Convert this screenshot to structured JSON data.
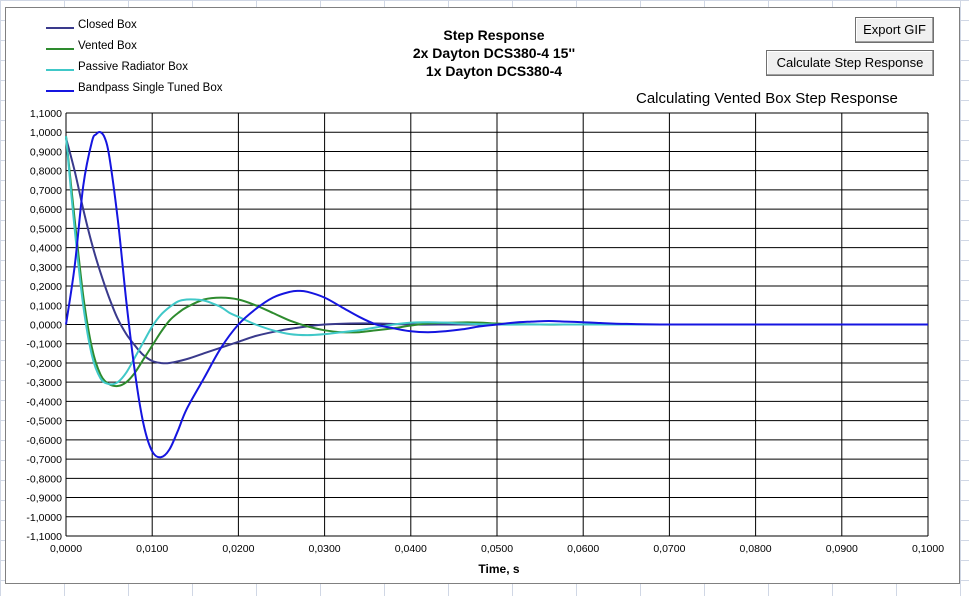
{
  "buttons": {
    "export_gif": "Export GIF",
    "calculate": "Calculate Step Response"
  },
  "status": "Calculating Vented Box Step Response",
  "chart_data": {
    "type": "line",
    "title_lines": [
      "Step Response",
      "2x Dayton  DCS380-4 15''",
      "1x Dayton DCS380-4"
    ],
    "xlabel": "Time, s",
    "ylabel": "",
    "xlim": [
      0,
      0.1
    ],
    "ylim": [
      -1.1,
      1.1
    ],
    "x_ticks": [
      "0,0000",
      "0,0100",
      "0,0200",
      "0,0300",
      "0,0400",
      "0,0500",
      "0,0600",
      "0,0700",
      "0,0800",
      "0,0900",
      "0,1000"
    ],
    "y_ticks": [
      "1,1000",
      "1,0000",
      "0,9000",
      "0,8000",
      "0,7000",
      "0,6000",
      "0,5000",
      "0,4000",
      "0,3000",
      "0,2000",
      "0,1000",
      "0,0000",
      "-0,1000",
      "-0,2000",
      "-0,3000",
      "-0,4000",
      "-0,5000",
      "-0,6000",
      "-0,7000",
      "-0,8000",
      "-0,9000",
      "-1,0000",
      "-1,1000"
    ],
    "grid": true,
    "legend_position": "top-left",
    "series": [
      {
        "name": "Closed Box",
        "color": "#3a3a8c",
        "x": [
          0,
          0.001,
          0.002,
          0.003,
          0.004,
          0.005,
          0.006,
          0.007,
          0.008,
          0.009,
          0.01,
          0.011,
          0.012,
          0.014,
          0.016,
          0.018,
          0.02,
          0.022,
          0.025,
          0.028,
          0.03,
          0.033,
          0.036,
          0.04,
          0.045,
          0.05,
          0.06,
          0.07,
          0.08,
          0.09,
          0.1
        ],
        "y": [
          0.97,
          0.8,
          0.6,
          0.42,
          0.27,
          0.14,
          0.03,
          -0.05,
          -0.11,
          -0.16,
          -0.19,
          -0.2,
          -0.2,
          -0.18,
          -0.15,
          -0.12,
          -0.09,
          -0.06,
          -0.03,
          -0.01,
          0,
          0.005,
          0.005,
          0,
          0,
          0,
          0,
          0,
          0,
          0,
          0
        ]
      },
      {
        "name": "Vented Box",
        "color": "#2e8b2e",
        "x": [
          0,
          0.001,
          0.002,
          0.003,
          0.004,
          0.005,
          0.006,
          0.007,
          0.008,
          0.009,
          0.01,
          0.011,
          0.012,
          0.013,
          0.014,
          0.016,
          0.018,
          0.02,
          0.022,
          0.024,
          0.026,
          0.028,
          0.03,
          0.032,
          0.034,
          0.036,
          0.038,
          0.04,
          0.042,
          0.045,
          0.048,
          0.05,
          0.055,
          0.06,
          0.07,
          0.08,
          0.09,
          0.1
        ],
        "y": [
          0.98,
          0.55,
          0.15,
          -0.12,
          -0.26,
          -0.31,
          -0.32,
          -0.3,
          -0.25,
          -0.18,
          -0.11,
          -0.04,
          0.02,
          0.06,
          0.09,
          0.13,
          0.14,
          0.13,
          0.1,
          0.06,
          0.02,
          -0.01,
          -0.03,
          -0.04,
          -0.04,
          -0.03,
          -0.02,
          -0.005,
          0.005,
          0.01,
          0.01,
          0.005,
          0,
          0,
          0,
          0,
          0,
          0
        ]
      },
      {
        "name": "Passive Radiator Box",
        "color": "#40c8c8",
        "x": [
          0,
          0.001,
          0.002,
          0.003,
          0.004,
          0.005,
          0.006,
          0.007,
          0.008,
          0.009,
          0.01,
          0.011,
          0.012,
          0.013,
          0.014,
          0.015,
          0.016,
          0.017,
          0.018,
          0.019,
          0.02,
          0.022,
          0.024,
          0.026,
          0.028,
          0.03,
          0.032,
          0.034,
          0.036,
          0.038,
          0.04,
          0.042,
          0.044,
          0.046,
          0.05,
          0.055,
          0.06,
          0.07,
          0.08,
          0.09,
          0.1
        ],
        "y": [
          0.98,
          0.5,
          0.1,
          -0.16,
          -0.28,
          -0.31,
          -0.3,
          -0.25,
          -0.17,
          -0.09,
          -0.01,
          0.05,
          0.09,
          0.12,
          0.13,
          0.13,
          0.125,
          0.11,
          0.09,
          0.06,
          0.04,
          0,
          -0.03,
          -0.05,
          -0.055,
          -0.05,
          -0.04,
          -0.03,
          -0.015,
          0,
          0.01,
          0.012,
          0.01,
          0.005,
          0,
          0,
          0,
          0,
          0,
          0,
          0
        ]
      },
      {
        "name": "Bandpass Single Tuned Box",
        "color": "#1515e0",
        "x": [
          0,
          0.001,
          0.002,
          0.003,
          0.0035,
          0.004,
          0.0045,
          0.005,
          0.006,
          0.007,
          0.008,
          0.009,
          0.01,
          0.011,
          0.012,
          0.013,
          0.014,
          0.016,
          0.018,
          0.02,
          0.022,
          0.024,
          0.026,
          0.027,
          0.028,
          0.03,
          0.032,
          0.034,
          0.036,
          0.038,
          0.04,
          0.042,
          0.044,
          0.046,
          0.048,
          0.05,
          0.052,
          0.054,
          0.056,
          0.058,
          0.06,
          0.062,
          0.065,
          0.07,
          0.08,
          0.09,
          0.1
        ],
        "y": [
          0,
          0.3,
          0.72,
          0.95,
          0.99,
          1.0,
          0.97,
          0.88,
          0.55,
          0.12,
          -0.25,
          -0.52,
          -0.66,
          -0.69,
          -0.65,
          -0.55,
          -0.44,
          -0.28,
          -0.12,
          0.0,
          0.08,
          0.14,
          0.17,
          0.175,
          0.17,
          0.14,
          0.09,
          0.04,
          0.0,
          -0.02,
          -0.035,
          -0.04,
          -0.035,
          -0.025,
          -0.01,
          0.0,
          0.01,
          0.015,
          0.018,
          0.015,
          0.012,
          0.008,
          0.003,
          0,
          0,
          0,
          0
        ]
      }
    ]
  }
}
